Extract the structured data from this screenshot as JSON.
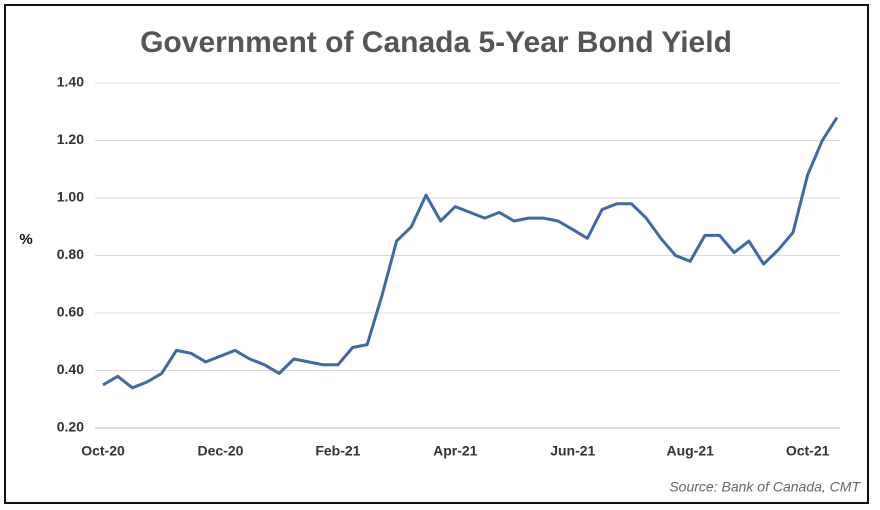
{
  "chart_data": {
    "type": "line",
    "title": "Government of Canada 5-Year Bond Yield",
    "y_label": "%",
    "source": "Source: Bank of Canada, CMT",
    "categories": [
      "Oct-20",
      null,
      null,
      null,
      null,
      null,
      null,
      null,
      "Dec-20",
      null,
      null,
      null,
      null,
      null,
      null,
      null,
      "Feb-21",
      null,
      null,
      null,
      null,
      null,
      null,
      null,
      "Apr-21",
      null,
      null,
      null,
      null,
      null,
      null,
      null,
      "Jun-21",
      null,
      null,
      null,
      null,
      null,
      null,
      null,
      "Aug-21",
      null,
      null,
      null,
      null,
      null,
      null,
      null,
      "Oct-21",
      null,
      null
    ],
    "series": [
      {
        "name": "5-Year Bond Yield",
        "color": "#3f68aa",
        "values": [
          0.35,
          0.38,
          0.34,
          0.36,
          0.39,
          0.47,
          0.46,
          0.43,
          0.45,
          0.47,
          0.44,
          0.42,
          0.39,
          0.44,
          0.43,
          0.42,
          0.42,
          0.48,
          0.49,
          0.66,
          0.85,
          0.9,
          1.01,
          0.92,
          0.97,
          0.95,
          0.93,
          0.95,
          0.92,
          0.93,
          0.93,
          0.92,
          0.89,
          0.86,
          0.96,
          0.98,
          0.98,
          0.93,
          0.86,
          0.8,
          0.78,
          0.87,
          0.87,
          0.81,
          0.85,
          0.77,
          0.82,
          0.88,
          1.08,
          1.2,
          1.28
        ]
      }
    ],
    "ylim": [
      0.2,
      1.4
    ],
    "yticks": [
      {
        "value": 0.2,
        "label": "0.20"
      },
      {
        "value": 0.4,
        "label": "0.40"
      },
      {
        "value": 0.6,
        "label": "0.60"
      },
      {
        "value": 0.8,
        "label": "0.80"
      },
      {
        "value": 1.0,
        "label": "1.00"
      },
      {
        "value": 1.2,
        "label": "1.20"
      },
      {
        "value": 1.4,
        "label": "1.40"
      }
    ],
    "grid": true
  }
}
